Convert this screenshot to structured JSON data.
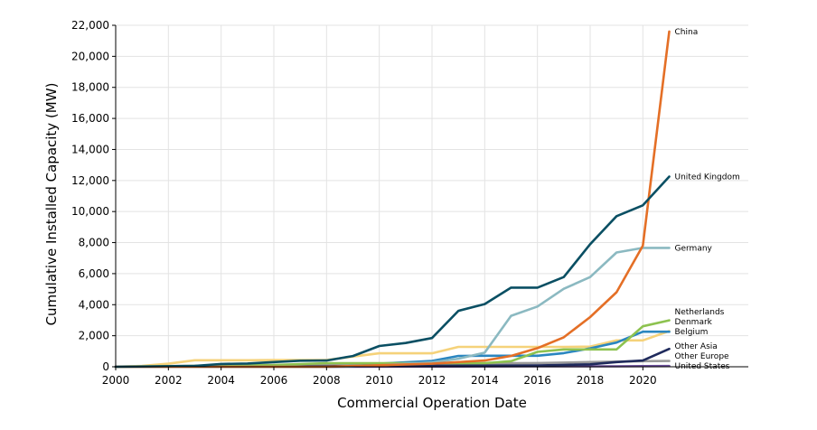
{
  "chart_data": {
    "type": "line",
    "xlabel": "Commercial Operation Date",
    "ylabel": "Cumulative Installed Capacity (MW)",
    "xlim": [
      2000,
      2024
    ],
    "ylim": [
      0,
      22000
    ],
    "x_ticks": [
      2000,
      2002,
      2004,
      2006,
      2008,
      2010,
      2012,
      2014,
      2016,
      2018,
      2020
    ],
    "x_tick_labels": [
      "2000",
      "2002",
      "2004",
      "2006",
      "2008",
      "2010",
      "2012",
      "2014",
      "2016",
      "2018",
      "2020"
    ],
    "y_ticks": [
      0,
      2000,
      4000,
      6000,
      8000,
      10000,
      12000,
      14000,
      16000,
      18000,
      20000,
      22000
    ],
    "y_tick_labels": [
      "0",
      "2,000",
      "4,000",
      "6,000",
      "8,000",
      "10,000",
      "12,000",
      "14,000",
      "16,000",
      "18,000",
      "20,000",
      "22,000"
    ],
    "grid": true,
    "legend": "end-of-line labels",
    "series": [
      {
        "name": "United States",
        "color": "#6b4e9b",
        "points": [
          [
            2000,
            0
          ],
          [
            2008,
            0
          ],
          [
            2016,
            30
          ],
          [
            2017,
            30
          ],
          [
            2018,
            30
          ],
          [
            2019,
            30
          ],
          [
            2020,
            40
          ],
          [
            2021,
            45
          ]
        ]
      },
      {
        "name": "Other Europe",
        "color": "#9a9a9a",
        "points": [
          [
            2000,
            10
          ],
          [
            2008,
            150
          ],
          [
            2012,
            200
          ],
          [
            2014,
            220
          ],
          [
            2016,
            240
          ],
          [
            2018,
            300
          ],
          [
            2019,
            330
          ],
          [
            2020,
            360
          ],
          [
            2021,
            370
          ]
        ]
      },
      {
        "name": "Other Asia",
        "color": "#1f2a5c",
        "points": [
          [
            2000,
            0
          ],
          [
            2016,
            80
          ],
          [
            2018,
            160
          ],
          [
            2019,
            300
          ],
          [
            2020,
            400
          ],
          [
            2021,
            1150
          ]
        ]
      },
      {
        "name": "Denmark",
        "color": "#f5d27a",
        "points": [
          [
            2000,
            0
          ],
          [
            2001,
            50
          ],
          [
            2002,
            200
          ],
          [
            2003,
            420
          ],
          [
            2005,
            420
          ],
          [
            2006,
            430
          ],
          [
            2008,
            430
          ],
          [
            2009,
            660
          ],
          [
            2010,
            870
          ],
          [
            2012,
            870
          ],
          [
            2013,
            1280
          ],
          [
            2016,
            1280
          ],
          [
            2017,
            1280
          ],
          [
            2018,
            1300
          ],
          [
            2019,
            1700
          ],
          [
            2020,
            1700
          ],
          [
            2021,
            2300
          ]
        ]
      },
      {
        "name": "Belgium",
        "color": "#2a86c0",
        "points": [
          [
            2000,
            0
          ],
          [
            2008,
            0
          ],
          [
            2009,
            30
          ],
          [
            2010,
            200
          ],
          [
            2012,
            380
          ],
          [
            2013,
            700
          ],
          [
            2014,
            710
          ],
          [
            2015,
            710
          ],
          [
            2016,
            710
          ],
          [
            2017,
            880
          ],
          [
            2018,
            1190
          ],
          [
            2019,
            1560
          ],
          [
            2020,
            2260
          ],
          [
            2021,
            2260
          ]
        ]
      },
      {
        "name": "Netherlands",
        "color": "#8dc24f",
        "points": [
          [
            2000,
            0
          ],
          [
            2006,
            110
          ],
          [
            2008,
            230
          ],
          [
            2012,
            230
          ],
          [
            2014,
            230
          ],
          [
            2015,
            360
          ],
          [
            2016,
            960
          ],
          [
            2017,
            1120
          ],
          [
            2018,
            1120
          ],
          [
            2019,
            1120
          ],
          [
            2020,
            2610
          ],
          [
            2021,
            2990
          ]
        ]
      },
      {
        "name": "Germany",
        "color": "#8bb9c1",
        "points": [
          [
            2000,
            0
          ],
          [
            2008,
            0
          ],
          [
            2009,
            40
          ],
          [
            2010,
            80
          ],
          [
            2011,
            200
          ],
          [
            2012,
            280
          ],
          [
            2013,
            520
          ],
          [
            2014,
            910
          ],
          [
            2015,
            3280
          ],
          [
            2016,
            3880
          ],
          [
            2017,
            5020
          ],
          [
            2018,
            5780
          ],
          [
            2019,
            7360
          ],
          [
            2020,
            7660
          ],
          [
            2021,
            7660
          ]
        ]
      },
      {
        "name": "China",
        "color": "#e46f26",
        "points": [
          [
            2000,
            0
          ],
          [
            2008,
            0
          ],
          [
            2010,
            100
          ],
          [
            2012,
            200
          ],
          [
            2013,
            300
          ],
          [
            2014,
            400
          ],
          [
            2015,
            700
          ],
          [
            2016,
            1200
          ],
          [
            2017,
            1900
          ],
          [
            2018,
            3200
          ],
          [
            2019,
            4800
          ],
          [
            2020,
            7800
          ],
          [
            2021,
            21600
          ]
        ]
      },
      {
        "name": "United Kingdom",
        "color": "#0a4f63",
        "points": [
          [
            2000,
            0
          ],
          [
            2003,
            60
          ],
          [
            2004,
            180
          ],
          [
            2005,
            210
          ],
          [
            2006,
            300
          ],
          [
            2007,
            390
          ],
          [
            2008,
            400
          ],
          [
            2009,
            690
          ],
          [
            2010,
            1340
          ],
          [
            2011,
            1530
          ],
          [
            2012,
            1850
          ],
          [
            2013,
            3600
          ],
          [
            2014,
            4040
          ],
          [
            2015,
            5100
          ],
          [
            2016,
            5100
          ],
          [
            2017,
            5780
          ],
          [
            2018,
            7900
          ],
          [
            2019,
            9700
          ],
          [
            2020,
            10400
          ],
          [
            2021,
            12250
          ]
        ]
      }
    ]
  }
}
